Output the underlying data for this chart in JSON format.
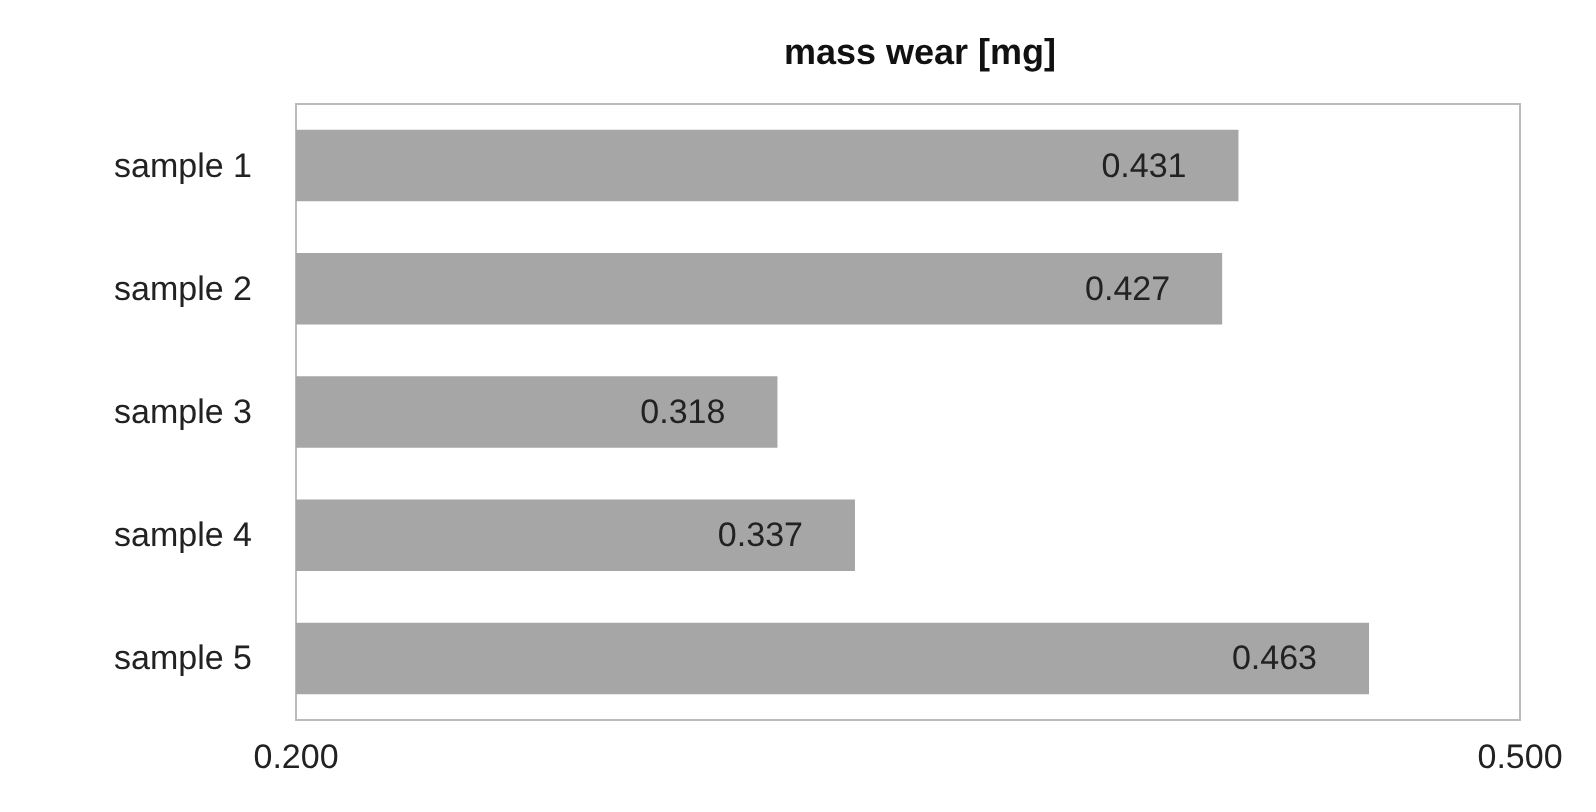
{
  "chart_data": {
    "type": "bar",
    "orientation": "horizontal",
    "title": "mass wear [mg]",
    "categories": [
      "sample 1",
      "sample 2",
      "sample 3",
      "sample 4",
      "sample 5"
    ],
    "values": [
      0.431,
      0.427,
      0.318,
      0.337,
      0.463
    ],
    "color": "#a6a6a6",
    "xlim": [
      0.2,
      0.5
    ],
    "xticks": [
      {
        "value": 0.2,
        "label": "0.200"
      },
      {
        "value": 0.5,
        "label": "0.500"
      }
    ],
    "data_labels": true,
    "grid": false
  }
}
